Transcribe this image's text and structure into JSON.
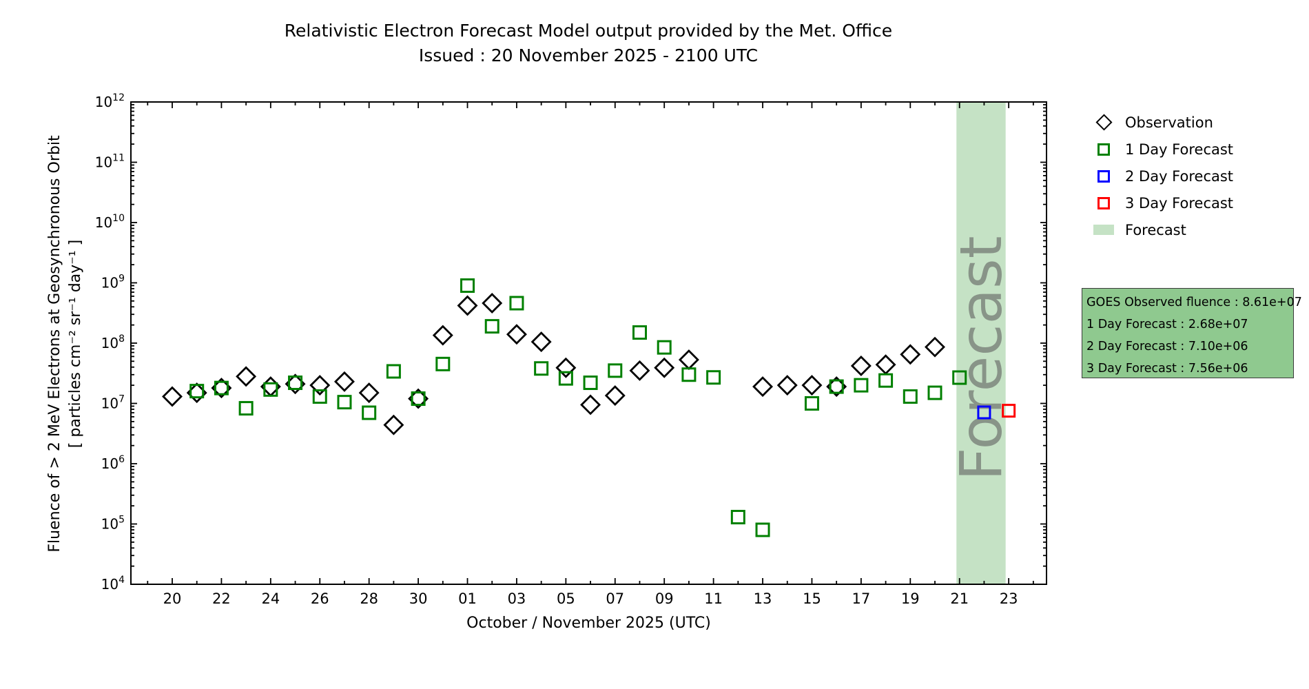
{
  "header": {
    "title": "Relativistic Electron Forecast Model output provided by the Met. Office",
    "subtitle": "Issued : 20 November 2025 - 2100 UTC"
  },
  "legend": {
    "items": [
      {
        "label": "Observation",
        "marker": "black-diamond",
        "color": "#000000"
      },
      {
        "label": "1 Day Forecast",
        "marker": "green-square",
        "color": "#008000"
      },
      {
        "label": "2 Day Forecast",
        "marker": "blue-square",
        "color": "#0000ff"
      },
      {
        "label": "3 Day Forecast",
        "marker": "red-square",
        "color": "#ff0000"
      },
      {
        "label": "Forecast",
        "marker": "green-patch",
        "color": "#c5e2c5"
      }
    ]
  },
  "info_box": {
    "bg": "#8fc98f",
    "lines": [
      "GOES Observed fluence : 8.61e+07",
      "1 Day Forecast : 2.68e+07",
      "2 Day Forecast : 7.10e+06",
      "3 Day Forecast : 7.56e+06"
    ]
  },
  "chart_data": {
    "type": "scatter",
    "title": "Relativistic Electron Forecast Model output provided by the Met. Office",
    "subtitle": "Issued : 20 November 2025 - 2100 UTC",
    "xlabel": "October / November 2025 (UTC)",
    "ylabel_line1": "Fluence of > 2 MeV Electrons at Geosynchronous Orbit",
    "ylabel_line2": "[ particles cm⁻² sr⁻¹ day⁻¹ ]",
    "grid": false,
    "legend_position": "outside-right",
    "y_axis": {
      "scale": "log",
      "min": 10000.0,
      "max": 1000000000000.0,
      "tick_exponents": [
        4,
        5,
        6,
        7,
        8,
        9,
        10,
        11,
        12
      ]
    },
    "x_axis": {
      "note": "t = days since 20 October 2025; major ticks every 2 days, minor every day",
      "tick_t": [
        0,
        2,
        4,
        6,
        8,
        10,
        12,
        14,
        16,
        18,
        20,
        22,
        24,
        26,
        28,
        30,
        32,
        34
      ],
      "tick_labels": [
        "20",
        "22",
        "24",
        "26",
        "28",
        "30",
        "01",
        "03",
        "05",
        "07",
        "09",
        "11",
        "13",
        "15",
        "17",
        "19",
        "21",
        "23"
      ],
      "minor_t_min": -1,
      "minor_t_max": 35
    },
    "series": [
      {
        "name": "Observation",
        "marker": "diamond",
        "color": "#000000",
        "size": 26,
        "points": [
          [
            0,
            13000000.0
          ],
          [
            1,
            15000000.0
          ],
          [
            2,
            18000000.0
          ],
          [
            3,
            28000000.0
          ],
          [
            4,
            19000000.0
          ],
          [
            5,
            21000000.0
          ],
          [
            6,
            20000000.0
          ],
          [
            7,
            23000000.0
          ],
          [
            8,
            15000000.0
          ],
          [
            9,
            4400000.0
          ],
          [
            10,
            12000000.0
          ],
          [
            11,
            135000000.0
          ],
          [
            12,
            420000000.0
          ],
          [
            13,
            460000000.0
          ],
          [
            14,
            140000000.0
          ],
          [
            15,
            105000000.0
          ],
          [
            16,
            39000000.0
          ],
          [
            17,
            9500000.0
          ],
          [
            18,
            13500000.0
          ],
          [
            19,
            35000000.0
          ],
          [
            20,
            39000000.0
          ],
          [
            21,
            53000000.0
          ],
          [
            24,
            19000000.0
          ],
          [
            25,
            20000000.0
          ],
          [
            26,
            20000000.0
          ],
          [
            27,
            19000000.0
          ],
          [
            28,
            42000000.0
          ],
          [
            29,
            44000000.0
          ],
          [
            30,
            65000000.0
          ],
          [
            31,
            86100000.0
          ]
        ]
      },
      {
        "name": "1 Day Forecast",
        "marker": "square",
        "color": "#008000",
        "size": 18,
        "points": [
          [
            1,
            16000000.0
          ],
          [
            2,
            18000000.0
          ],
          [
            3,
            8300000.0
          ],
          [
            4,
            17000000.0
          ],
          [
            5,
            22000000.0
          ],
          [
            6,
            13000000.0
          ],
          [
            7,
            10500000.0
          ],
          [
            8,
            7000000.0
          ],
          [
            9,
            34000000.0
          ],
          [
            10,
            12000000.0
          ],
          [
            11,
            45000000.0
          ],
          [
            12,
            900000000.0
          ],
          [
            13,
            190000000.0
          ],
          [
            14,
            460000000.0
          ],
          [
            15,
            38000000.0
          ],
          [
            16,
            26000000.0
          ],
          [
            17,
            22000000.0
          ],
          [
            18,
            35000000.0
          ],
          [
            19,
            150000000.0
          ],
          [
            20,
            85000000.0
          ],
          [
            21,
            30000000.0
          ],
          [
            22,
            27000000.0
          ],
          [
            23,
            130000.0
          ],
          [
            24,
            80000.0
          ],
          [
            26,
            10000000.0
          ],
          [
            27,
            19000000.0
          ],
          [
            28,
            20000000.0
          ],
          [
            29,
            24000000.0
          ],
          [
            30,
            13000000.0
          ],
          [
            31,
            15000000.0
          ],
          [
            32,
            26800000.0
          ]
        ]
      },
      {
        "name": "2 Day Forecast",
        "marker": "square",
        "color": "#0000ff",
        "size": 17,
        "points": [
          [
            33,
            7100000.0
          ]
        ]
      },
      {
        "name": "3 Day Forecast",
        "marker": "square",
        "color": "#ff0000",
        "size": 17,
        "points": [
          [
            34,
            7560000.0
          ]
        ]
      }
    ],
    "forecast_band": {
      "t_start": 31.875,
      "t_end": 33.875,
      "label": "Forecast",
      "color": "#c5e2c5",
      "label_color": "#828c82"
    }
  }
}
